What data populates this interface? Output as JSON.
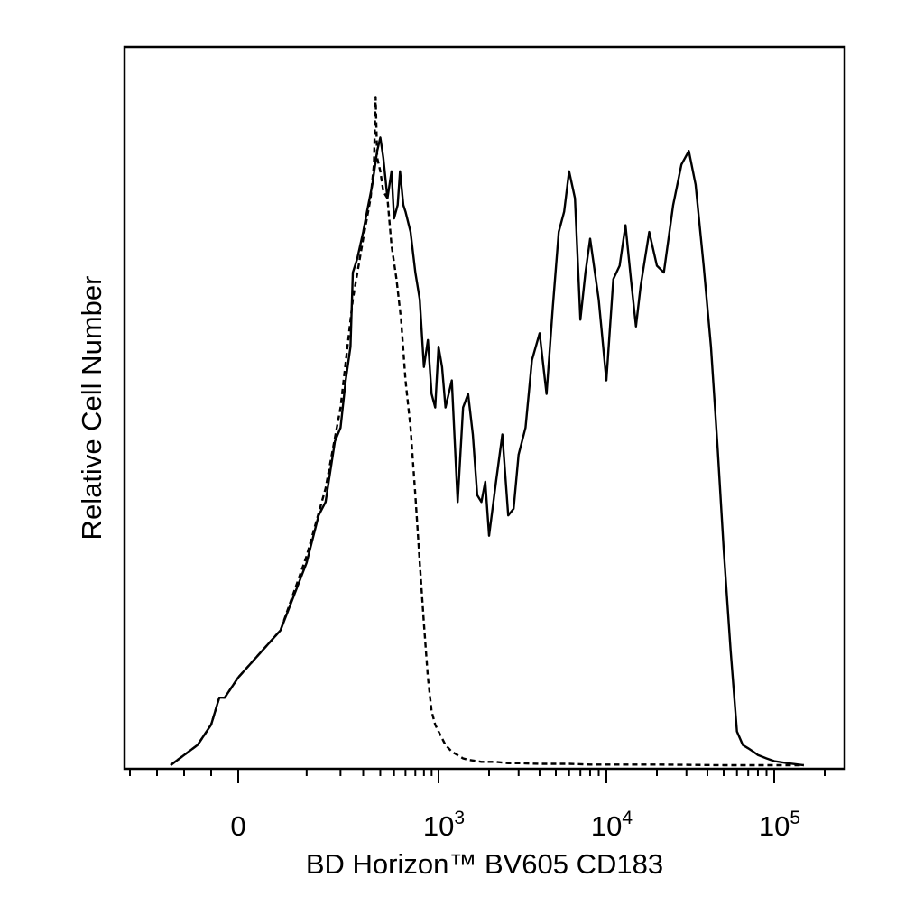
{
  "chart_data": {
    "type": "line",
    "title": "",
    "xlabel": "BD Horizon™ BV605 CD183",
    "ylabel": "Relative Cell Number",
    "x_scale": "biexponential",
    "x_tick_labels": [
      {
        "value": 0,
        "base": "0",
        "exp": ""
      },
      {
        "value": 1000,
        "base": "10",
        "exp": "3"
      },
      {
        "value": 10000,
        "base": "10",
        "exp": "4"
      },
      {
        "value": 100000,
        "base": "10",
        "exp": "5"
      }
    ],
    "x_range": [
      -400,
      250000
    ],
    "y_range": [
      0,
      1
    ],
    "grid": false,
    "series": [
      {
        "style": "solid",
        "x": [
          -250,
          -150,
          -100,
          -70,
          -50,
          0,
          50,
          100,
          130,
          150,
          180,
          200,
          220,
          240,
          250,
          270,
          300,
          320,
          350,
          380,
          400,
          420,
          450,
          480,
          500,
          530,
          550,
          580,
          600,
          650,
          700,
          750,
          800,
          850,
          900,
          950,
          1000,
          1050,
          1100,
          1200,
          1300,
          1400,
          1500,
          1600,
          1700,
          1800,
          1900,
          2000,
          2200,
          2400,
          2600,
          2800,
          3000,
          3300,
          3600,
          4000,
          4400,
          4800,
          5200,
          5600,
          6000,
          6500,
          7000,
          7500,
          8000,
          9000,
          10000,
          11000,
          12000,
          13000,
          14000,
          15000,
          16000,
          18000,
          20000,
          22000,
          25000,
          28000,
          31000,
          34000,
          38000,
          42000,
          46000,
          50000,
          55000,
          60000,
          65000,
          70000,
          75000,
          80000,
          90000,
          100000,
          120000,
          150000
        ],
        "y": [
          0.0,
          0.03,
          0.06,
          0.1,
          0.1,
          0.13,
          0.2,
          0.3,
          0.37,
          0.39,
          0.48,
          0.5,
          0.57,
          0.62,
          0.73,
          0.75,
          0.79,
          0.82,
          0.86,
          0.91,
          0.93,
          0.9,
          0.84,
          0.88,
          0.81,
          0.83,
          0.88,
          0.83,
          0.82,
          0.79,
          0.73,
          0.69,
          0.59,
          0.63,
          0.55,
          0.53,
          0.62,
          0.59,
          0.53,
          0.57,
          0.39,
          0.53,
          0.55,
          0.49,
          0.4,
          0.39,
          0.42,
          0.34,
          0.42,
          0.49,
          0.37,
          0.38,
          0.46,
          0.5,
          0.6,
          0.64,
          0.55,
          0.68,
          0.79,
          0.82,
          0.88,
          0.84,
          0.66,
          0.73,
          0.78,
          0.69,
          0.57,
          0.72,
          0.74,
          0.8,
          0.72,
          0.65,
          0.71,
          0.79,
          0.74,
          0.73,
          0.83,
          0.89,
          0.91,
          0.86,
          0.74,
          0.62,
          0.47,
          0.32,
          0.17,
          0.05,
          0.03,
          0.025,
          0.02,
          0.015,
          0.01,
          0.006,
          0.003,
          0.0
        ]
      },
      {
        "style": "dashed",
        "x": [
          -250,
          -150,
          -100,
          -70,
          -50,
          0,
          50,
          100,
          150,
          200,
          250,
          300,
          340,
          360,
          370,
          380,
          400,
          420,
          450,
          480,
          520,
          560,
          600,
          650,
          700,
          750,
          800,
          850,
          900,
          950,
          1000,
          1100,
          1200,
          1300,
          1400,
          1500,
          1800,
          2200,
          2600,
          3000,
          4000,
          6000,
          8000,
          10000,
          20000,
          50000,
          100000,
          150000
        ],
        "y": [
          0.0,
          0.03,
          0.06,
          0.1,
          0.1,
          0.13,
          0.2,
          0.31,
          0.41,
          0.53,
          0.69,
          0.78,
          0.84,
          0.89,
          0.99,
          0.9,
          0.88,
          0.85,
          0.84,
          0.77,
          0.72,
          0.66,
          0.57,
          0.5,
          0.4,
          0.3,
          0.21,
          0.13,
          0.08,
          0.06,
          0.05,
          0.03,
          0.02,
          0.015,
          0.01,
          0.008,
          0.005,
          0.005,
          0.003,
          0.003,
          0.002,
          0.002,
          0.001,
          0.001,
          0.001,
          0.0,
          0.0,
          0.0
        ]
      }
    ]
  }
}
